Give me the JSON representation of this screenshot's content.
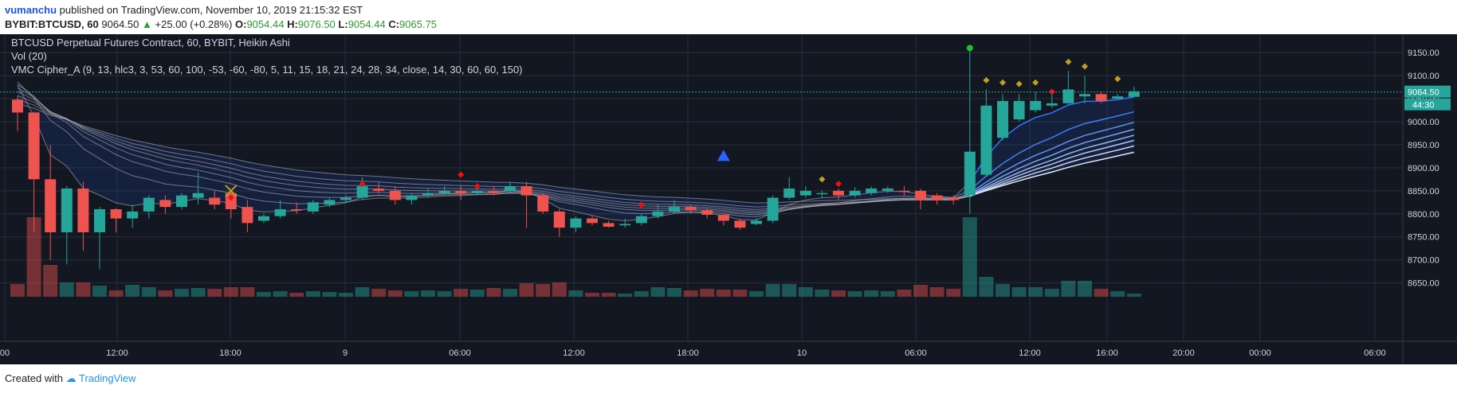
{
  "header": {
    "author": "vumanchu",
    "published_text": "published on TradingView.com, November 10, 2019 21:15:32 EST"
  },
  "symbol_line": {
    "symbol": "BYBIT:BTCUSD, 60",
    "price": "9064.50",
    "change": "+25.00 (+0.28%)",
    "o_label": "O:",
    "o": "9054.44",
    "h_label": "H:",
    "h": "9076.50",
    "l_label": "L:",
    "l": "9054.44",
    "c_label": "C:",
    "c": "9065.75"
  },
  "legend": {
    "title": "BTCUSD Perpetual Futures Contract, 60, BYBIT, Heikin Ashi",
    "vol": "Vol (20)",
    "indicator": "VMC Cipher_A (9, 13, hlc3, 3, 53, 60, 100, -53, -60, -80, 5, 11, 15, 18, 21, 24, 28, 34, close, 14, 30, 60, 60, 150)"
  },
  "price_tags": {
    "last": "9064.50",
    "countdown": "44:30"
  },
  "footer": {
    "created_with": "Created with",
    "brand": "TradingView"
  },
  "colors": {
    "background": "#131722",
    "up": "#26a69a",
    "down": "#ef5350",
    "ema_band": "#2962ff"
  },
  "chart_data": {
    "type": "candlestick",
    "ylim": [
      8620,
      9190
    ],
    "y_ticks": [
      8650,
      8700,
      8750,
      8800,
      8850,
      8900,
      8950,
      9000,
      9050,
      9100,
      9150
    ],
    "x_tick_labels": [
      "00",
      "12:00",
      "18:00",
      "9",
      "06:00",
      "12:00",
      "18:00",
      "10",
      "06:00",
      "12:00",
      "16:00",
      "20:00",
      "00:00",
      "06:00"
    ],
    "candles": [
      {
        "o": 9048,
        "c": 9020,
        "h": 9055,
        "l": 8980,
        "v": 16
      },
      {
        "o": 9020,
        "c": 8875,
        "h": 9022,
        "l": 8760,
        "v": 100
      },
      {
        "o": 8875,
        "c": 8760,
        "h": 8950,
        "l": 8700,
        "v": 40
      },
      {
        "o": 8760,
        "c": 8855,
        "h": 8860,
        "l": 8690,
        "v": 18
      },
      {
        "o": 8855,
        "c": 8760,
        "h": 8870,
        "l": 8720,
        "v": 18
      },
      {
        "o": 8760,
        "c": 8810,
        "h": 8815,
        "l": 8680,
        "v": 14
      },
      {
        "o": 8810,
        "c": 8790,
        "h": 8812,
        "l": 8760,
        "v": 8
      },
      {
        "o": 8790,
        "c": 8805,
        "h": 8820,
        "l": 8770,
        "v": 15
      },
      {
        "o": 8805,
        "c": 8835,
        "h": 8840,
        "l": 8790,
        "v": 12
      },
      {
        "o": 8830,
        "c": 8815,
        "h": 8840,
        "l": 8800,
        "v": 8
      },
      {
        "o": 8815,
        "c": 8840,
        "h": 8845,
        "l": 8810,
        "v": 10
      },
      {
        "o": 8835,
        "c": 8845,
        "h": 8890,
        "l": 8820,
        "v": 11
      },
      {
        "o": 8835,
        "c": 8820,
        "h": 8850,
        "l": 8810,
        "v": 10
      },
      {
        "o": 8845,
        "c": 8810,
        "h": 8850,
        "l": 8790,
        "v": 12
      },
      {
        "o": 8815,
        "c": 8780,
        "h": 8830,
        "l": 8760,
        "v": 12
      },
      {
        "o": 8785,
        "c": 8795,
        "h": 8800,
        "l": 8780,
        "v": 6
      },
      {
        "o": 8795,
        "c": 8810,
        "h": 8830,
        "l": 8790,
        "v": 7
      },
      {
        "o": 8810,
        "c": 8808,
        "h": 8825,
        "l": 8800,
        "v": 5
      },
      {
        "o": 8805,
        "c": 8825,
        "h": 8830,
        "l": 8800,
        "v": 7
      },
      {
        "o": 8820,
        "c": 8830,
        "h": 8835,
        "l": 8815,
        "v": 6
      },
      {
        "o": 8830,
        "c": 8835,
        "h": 8840,
        "l": 8825,
        "v": 5
      },
      {
        "o": 8835,
        "c": 8860,
        "h": 8880,
        "l": 8830,
        "v": 12
      },
      {
        "o": 8855,
        "c": 8850,
        "h": 8870,
        "l": 8845,
        "v": 10
      },
      {
        "o": 8850,
        "c": 8830,
        "h": 8860,
        "l": 8820,
        "v": 8
      },
      {
        "o": 8830,
        "c": 8840,
        "h": 8845,
        "l": 8820,
        "v": 7
      },
      {
        "o": 8840,
        "c": 8845,
        "h": 8855,
        "l": 8835,
        "v": 8
      },
      {
        "o": 8845,
        "c": 8850,
        "h": 8860,
        "l": 8840,
        "v": 7
      },
      {
        "o": 8850,
        "c": 8845,
        "h": 8860,
        "l": 8830,
        "v": 10
      },
      {
        "o": 8845,
        "c": 8850,
        "h": 8855,
        "l": 8840,
        "v": 9
      },
      {
        "o": 8850,
        "c": 8845,
        "h": 8860,
        "l": 8840,
        "v": 11
      },
      {
        "o": 8850,
        "c": 8860,
        "h": 8870,
        "l": 8845,
        "v": 10
      },
      {
        "o": 8860,
        "c": 8840,
        "h": 8870,
        "l": 8770,
        "v": 17
      },
      {
        "o": 8840,
        "c": 8805,
        "h": 8845,
        "l": 8800,
        "v": 16
      },
      {
        "o": 8805,
        "c": 8770,
        "h": 8810,
        "l": 8750,
        "v": 18
      },
      {
        "o": 8770,
        "c": 8790,
        "h": 8795,
        "l": 8760,
        "v": 8
      },
      {
        "o": 8790,
        "c": 8780,
        "h": 8795,
        "l": 8775,
        "v": 5
      },
      {
        "o": 8780,
        "c": 8772,
        "h": 8785,
        "l": 8770,
        "v": 5
      },
      {
        "o": 8775,
        "c": 8778,
        "h": 8790,
        "l": 8770,
        "v": 4
      },
      {
        "o": 8780,
        "c": 8795,
        "h": 8800,
        "l": 8775,
        "v": 7
      },
      {
        "o": 8795,
        "c": 8805,
        "h": 8820,
        "l": 8790,
        "v": 12
      },
      {
        "o": 8805,
        "c": 8815,
        "h": 8830,
        "l": 8800,
        "v": 11
      },
      {
        "o": 8815,
        "c": 8808,
        "h": 8820,
        "l": 8800,
        "v": 8
      },
      {
        "o": 8808,
        "c": 8798,
        "h": 8812,
        "l": 8790,
        "v": 10
      },
      {
        "o": 8798,
        "c": 8785,
        "h": 8800,
        "l": 8775,
        "v": 9
      },
      {
        "o": 8785,
        "c": 8770,
        "h": 8790,
        "l": 8765,
        "v": 9
      },
      {
        "o": 8778,
        "c": 8785,
        "h": 8790,
        "l": 8775,
        "v": 7
      },
      {
        "o": 8785,
        "c": 8835,
        "h": 8840,
        "l": 8780,
        "v": 16
      },
      {
        "o": 8835,
        "c": 8855,
        "h": 8880,
        "l": 8830,
        "v": 16
      },
      {
        "o": 8840,
        "c": 8850,
        "h": 8860,
        "l": 8835,
        "v": 12
      },
      {
        "o": 8845,
        "c": 8845,
        "h": 8850,
        "l": 8835,
        "v": 9
      },
      {
        "o": 8850,
        "c": 8840,
        "h": 8855,
        "l": 8830,
        "v": 8
      },
      {
        "o": 8840,
        "c": 8850,
        "h": 8858,
        "l": 8835,
        "v": 7
      },
      {
        "o": 8845,
        "c": 8855,
        "h": 8860,
        "l": 8840,
        "v": 8
      },
      {
        "o": 8850,
        "c": 8855,
        "h": 8860,
        "l": 8845,
        "v": 7
      },
      {
        "o": 8850,
        "c": 8848,
        "h": 8860,
        "l": 8840,
        "v": 9
      },
      {
        "o": 8850,
        "c": 8830,
        "h": 8855,
        "l": 8810,
        "v": 15
      },
      {
        "o": 8840,
        "c": 8830,
        "h": 8845,
        "l": 8820,
        "v": 12
      },
      {
        "o": 8835,
        "c": 8830,
        "h": 8840,
        "l": 8820,
        "v": 10
      },
      {
        "o": 8840,
        "c": 8935,
        "h": 9155,
        "l": 8800,
        "v": 100
      },
      {
        "o": 8885,
        "c": 9035,
        "h": 9070,
        "l": 8880,
        "v": 25
      },
      {
        "o": 8965,
        "c": 9045,
        "h": 9060,
        "l": 8960,
        "v": 16
      },
      {
        "o": 9005,
        "c": 9045,
        "h": 9060,
        "l": 9000,
        "v": 12
      },
      {
        "o": 9025,
        "c": 9045,
        "h": 9065,
        "l": 9020,
        "v": 12
      },
      {
        "o": 9035,
        "c": 9040,
        "h": 9060,
        "l": 9030,
        "v": 10
      },
      {
        "o": 9040,
        "c": 9070,
        "h": 9110,
        "l": 9035,
        "v": 20
      },
      {
        "o": 9055,
        "c": 9060,
        "h": 9100,
        "l": 9040,
        "v": 20
      },
      {
        "o": 9060,
        "c": 9045,
        "h": 9065,
        "l": 9040,
        "v": 10
      },
      {
        "o": 9050,
        "c": 9055,
        "h": 9060,
        "l": 9050,
        "v": 7
      },
      {
        "o": 9054,
        "c": 9066,
        "h": 9076,
        "l": 9054,
        "v": 4
      }
    ],
    "markers": [
      {
        "i": 13,
        "shape": "x",
        "color": "#c0a020",
        "price": 8850
      },
      {
        "i": 13,
        "shape": "diamond",
        "color": "#ef1010",
        "price": 8835
      },
      {
        "i": 21,
        "shape": "diamond",
        "color": "#ef1010",
        "price": 8865
      },
      {
        "i": 27,
        "shape": "diamond",
        "color": "#ef1010",
        "price": 8885
      },
      {
        "i": 28,
        "shape": "diamond",
        "color": "#ef1010",
        "price": 8860
      },
      {
        "i": 38,
        "shape": "diamond",
        "color": "#ef1010",
        "price": 8820
      },
      {
        "i": 43,
        "shape": "triangle",
        "color": "#2962ff",
        "price": 8925
      },
      {
        "i": 49,
        "shape": "diamond",
        "color": "#c0a020",
        "price": 8875
      },
      {
        "i": 50,
        "shape": "diamond",
        "color": "#ef1010",
        "price": 8865
      },
      {
        "i": 58,
        "shape": "dot",
        "color": "#1fbf2f",
        "price": 9160
      },
      {
        "i": 59,
        "shape": "diamond",
        "color": "#c0a020",
        "price": 9090
      },
      {
        "i": 60,
        "shape": "diamond",
        "color": "#c0a020",
        "price": 9085
      },
      {
        "i": 61,
        "shape": "diamond",
        "color": "#c0a020",
        "price": 9082
      },
      {
        "i": 62,
        "shape": "diamond",
        "color": "#c0a020",
        "price": 9085
      },
      {
        "i": 63,
        "shape": "diamond",
        "color": "#ef1010",
        "price": 9065
      },
      {
        "i": 64,
        "shape": "diamond",
        "color": "#c0a020",
        "price": 9130
      },
      {
        "i": 65,
        "shape": "diamond",
        "color": "#c0a020",
        "price": 9120
      },
      {
        "i": 67,
        "shape": "diamond",
        "color": "#c0a020",
        "price": 9093
      }
    ]
  }
}
